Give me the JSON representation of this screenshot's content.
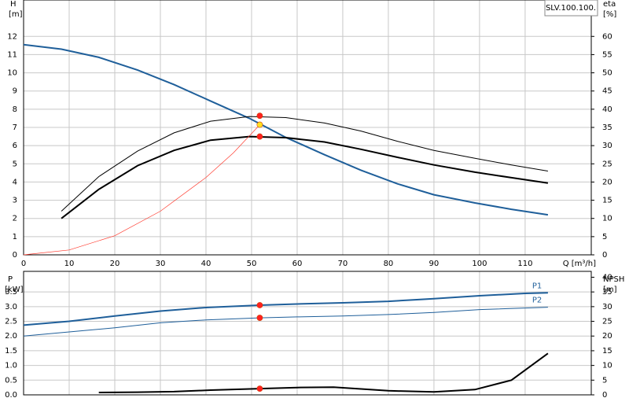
{
  "chart_data": [
    {
      "type": "line",
      "annotation": "SLV.100.100.",
      "y_label": "H",
      "y_unit": "[m]",
      "y2_label": "eta",
      "y2_unit": "[%]",
      "x_label": "Q [m³/h]",
      "xlim": [
        0,
        124.5
      ],
      "xticks": [
        0,
        10,
        20,
        30,
        40,
        50,
        60,
        70,
        80,
        90,
        100,
        110
      ],
      "ylim": [
        0,
        14
      ],
      "yticks": [
        0,
        1,
        2,
        3,
        4,
        5,
        6,
        7,
        8,
        9,
        10,
        11,
        12
      ],
      "y2lim": [
        0,
        70
      ],
      "y2ticks": [
        0,
        5,
        10,
        15,
        20,
        25,
        30,
        35,
        40,
        45,
        50,
        55,
        60
      ],
      "grid": true,
      "series": [
        {
          "color": "#1f5f9a",
          "width": 2,
          "x": [
            0,
            8.3,
            16.5,
            25,
            33,
            41,
            49.5,
            57.5,
            66,
            74,
            82,
            90,
            99,
            107,
            115
          ],
          "values": [
            11.55,
            11.3,
            10.85,
            10.15,
            9.35,
            8.45,
            7.5,
            6.45,
            5.5,
            4.65,
            3.9,
            3.3,
            2.85,
            2.5,
            2.2
          ]
        },
        {
          "color": "#000000",
          "width": 2,
          "axis": "y2",
          "x": [
            8.3,
            16.5,
            25,
            33,
            41,
            49.5,
            57.5,
            66,
            74,
            82,
            90,
            99,
            107,
            115
          ],
          "values": [
            10,
            18,
            24.5,
            28.7,
            31.5,
            32.5,
            32.2,
            31,
            29,
            26.8,
            24.7,
            22.7,
            21.2,
            19.7
          ]
        },
        {
          "color": "#000000",
          "width": 1,
          "axis": "y2",
          "x": [
            8.3,
            16.5,
            25,
            33,
            41,
            49.5,
            57.5,
            66,
            74,
            82,
            90,
            99,
            107,
            115
          ],
          "values": [
            12,
            21.5,
            28.5,
            33.5,
            36.7,
            38,
            37.7,
            36.2,
            34,
            31.2,
            28.7,
            26.5,
            24.7,
            23
          ]
        },
        {
          "color": "#ff3b2f",
          "width": 0.7,
          "x": [
            0,
            10,
            20,
            30,
            40,
            46,
            52
          ],
          "values": [
            0,
            0.27,
            1.05,
            2.4,
            4.25,
            5.6,
            7.2
          ]
        },
        {
          "color": "#ff2020",
          "marker": true,
          "axis": "y2",
          "x": [
            51.8
          ],
          "values": [
            38.2
          ]
        },
        {
          "color": "#ffe020",
          "marker": true,
          "x": [
            51.8
          ],
          "values": [
            7.15
          ]
        },
        {
          "color": "#ff2020",
          "marker": true,
          "axis": "y2",
          "x": [
            51.8
          ],
          "values": [
            32.5
          ]
        }
      ]
    },
    {
      "type": "line",
      "y_label": "P",
      "y_unit": "[kW]",
      "y2_label": "NPSH",
      "y2_unit": "[m]",
      "xlim": [
        0,
        124.5
      ],
      "ylim": [
        0,
        4.2
      ],
      "yticks": [
        {
          "value": 0,
          "label": "0.0"
        },
        0.5,
        {
          "value": 1,
          "label": "1.0"
        },
        1.5,
        {
          "value": 2,
          "label": "2.0"
        },
        2.5,
        {
          "value": 3,
          "label": "3.0"
        },
        3.5
      ],
      "y2lim": [
        0,
        42
      ],
      "y2ticks": [
        0,
        5,
        10,
        15,
        20,
        25,
        30,
        35,
        40
      ],
      "grid": true,
      "series": [
        {
          "name": "P1",
          "color": "#1f5f9a",
          "width": 2,
          "x": [
            0,
            10,
            20,
            30,
            40,
            51.8,
            60,
            70,
            80,
            90,
            100,
            110,
            115
          ],
          "values": [
            2.37,
            2.5,
            2.68,
            2.85,
            2.97,
            3.05,
            3.09,
            3.13,
            3.18,
            3.27,
            3.37,
            3.45,
            3.47
          ]
        },
        {
          "name": "P2",
          "color": "#1f5f9a",
          "width": 1,
          "x": [
            0,
            10,
            20,
            30,
            40,
            51.8,
            60,
            70,
            80,
            90,
            100,
            115
          ],
          "values": [
            2.0,
            2.14,
            2.28,
            2.45,
            2.55,
            2.62,
            2.65,
            2.68,
            2.73,
            2.8,
            2.9,
            2.98
          ]
        },
        {
          "color": "#000000",
          "width": 2,
          "axis": "y2",
          "x": [
            16.5,
            25,
            33,
            41,
            51.8,
            60,
            68,
            80,
            90,
            99,
            107,
            115
          ],
          "values": [
            0.8,
            0.9,
            1.1,
            1.6,
            2.1,
            2.5,
            2.6,
            1.4,
            1.0,
            1.8,
            5.0,
            14.1
          ]
        },
        {
          "color": "#ff2020",
          "marker": true,
          "x": [
            51.8
          ],
          "values": [
            3.05
          ]
        },
        {
          "color": "#ff2020",
          "marker": true,
          "x": [
            51.8
          ],
          "values": [
            2.62
          ]
        },
        {
          "color": "#ff2020",
          "marker": true,
          "axis": "y2",
          "x": [
            51.8
          ],
          "values": [
            2.1
          ]
        }
      ]
    }
  ]
}
